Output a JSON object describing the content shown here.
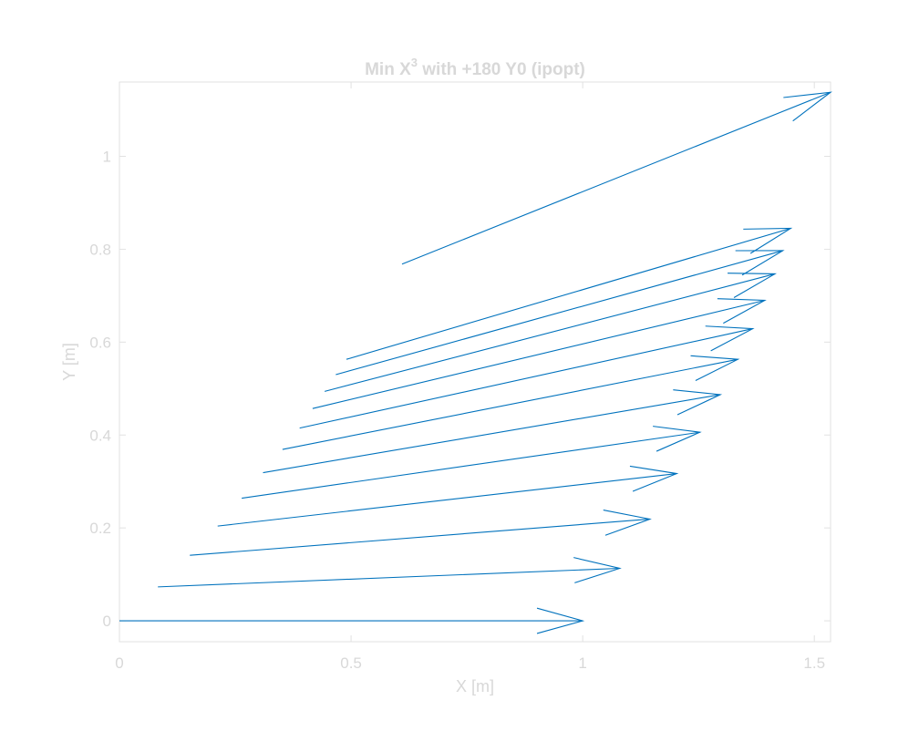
{
  "chart_data": {
    "type": "quiver",
    "title": "Min X",
    "title_superscript": "3",
    "title_suffix": " with +180 Y0 (ipopt)",
    "xlabel": "X [m]",
    "ylabel": "Y [m]",
    "xlim": [
      0,
      1.535
    ],
    "ylim": [
      -0.045,
      1.16
    ],
    "xticks": [
      0,
      0.5,
      1,
      1.5
    ],
    "xtick_labels": [
      "0",
      "0.5",
      "1",
      "1.5"
    ],
    "yticks": [
      0,
      0.2,
      0.4,
      0.6,
      0.8,
      1
    ],
    "ytick_labels": [
      "0",
      "0.2",
      "0.4",
      "0.6",
      "0.8",
      "1"
    ],
    "grid": false,
    "series": [
      {
        "color": "#0072BD",
        "vectors": [
          {
            "x0": 0.0,
            "y0": 0.0,
            "x1": 1.0,
            "y1": 0.0
          },
          {
            "x0": 0.083,
            "y0": 0.073,
            "x1": 1.08,
            "y1": 0.113
          },
          {
            "x0": 0.152,
            "y0": 0.141,
            "x1": 1.145,
            "y1": 0.219
          },
          {
            "x0": 0.212,
            "y0": 0.204,
            "x1": 1.203,
            "y1": 0.317
          },
          {
            "x0": 0.264,
            "y0": 0.264,
            "x1": 1.253,
            "y1": 0.406
          },
          {
            "x0": 0.31,
            "y0": 0.319,
            "x1": 1.297,
            "y1": 0.487
          },
          {
            "x0": 0.352,
            "y0": 0.369,
            "x1": 1.335,
            "y1": 0.563
          },
          {
            "x0": 0.389,
            "y0": 0.415,
            "x1": 1.367,
            "y1": 0.629
          },
          {
            "x0": 0.417,
            "y0": 0.457,
            "x1": 1.393,
            "y1": 0.69
          },
          {
            "x0": 0.443,
            "y0": 0.494,
            "x1": 1.415,
            "y1": 0.747
          },
          {
            "x0": 0.467,
            "y0": 0.53,
            "x1": 1.432,
            "y1": 0.797
          },
          {
            "x0": 0.49,
            "y0": 0.563,
            "x1": 1.449,
            "y1": 0.845
          },
          {
            "x0": 0.61,
            "y0": 0.768,
            "x1": 1.535,
            "y1": 1.138
          }
        ]
      }
    ]
  }
}
